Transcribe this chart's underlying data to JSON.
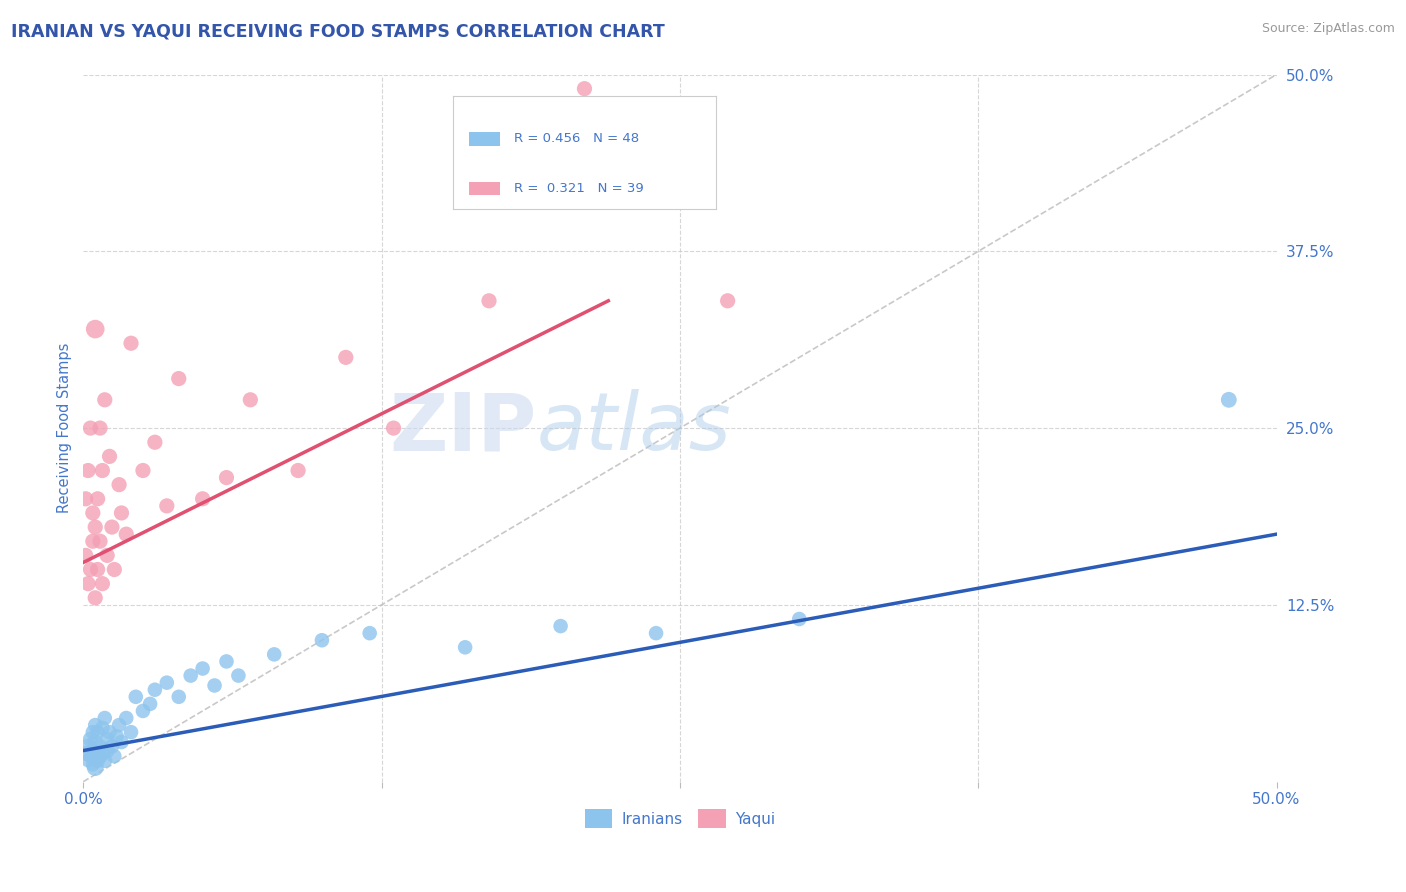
{
  "title": "IRANIAN VS YAQUI RECEIVING FOOD STAMPS CORRELATION CHART",
  "source": "Source: ZipAtlas.com",
  "ylabel": "Receiving Food Stamps",
  "xlim": [
    0,
    0.5
  ],
  "ylim": [
    0,
    0.5
  ],
  "color_iranian": "#8DC4ED",
  "color_yaqui": "#F4A0B5",
  "color_trend_iranian": "#2B5CB8",
  "color_trend_yaqui": "#E05070",
  "color_diagonal": "#BBBBBB",
  "color_grid": "#CCCCCC",
  "color_title": "#3355AA",
  "color_axis_labels": "#4477CC",
  "color_source": "#999999",
  "background_color": "#FFFFFF",
  "iranians_x": [
    0.001,
    0.002,
    0.002,
    0.003,
    0.003,
    0.004,
    0.004,
    0.004,
    0.005,
    0.005,
    0.005,
    0.006,
    0.006,
    0.007,
    0.007,
    0.008,
    0.008,
    0.009,
    0.009,
    0.01,
    0.01,
    0.011,
    0.012,
    0.013,
    0.014,
    0.015,
    0.016,
    0.018,
    0.02,
    0.022,
    0.025,
    0.028,
    0.03,
    0.035,
    0.04,
    0.045,
    0.05,
    0.055,
    0.06,
    0.065,
    0.08,
    0.1,
    0.12,
    0.16,
    0.2,
    0.24,
    0.3,
    0.48
  ],
  "iranians_y": [
    0.02,
    0.015,
    0.025,
    0.018,
    0.03,
    0.012,
    0.035,
    0.022,
    0.01,
    0.028,
    0.04,
    0.015,
    0.035,
    0.018,
    0.025,
    0.02,
    0.038,
    0.015,
    0.045,
    0.022,
    0.03,
    0.035,
    0.025,
    0.018,
    0.032,
    0.04,
    0.028,
    0.045,
    0.035,
    0.06,
    0.05,
    0.055,
    0.065,
    0.07,
    0.06,
    0.075,
    0.08,
    0.068,
    0.085,
    0.075,
    0.09,
    0.1,
    0.105,
    0.095,
    0.11,
    0.105,
    0.115,
    0.27
  ],
  "iranians_size": [
    120,
    100,
    120,
    110,
    120,
    100,
    110,
    120,
    150,
    120,
    110,
    120,
    110,
    120,
    110,
    120,
    110,
    120,
    110,
    120,
    110,
    110,
    110,
    110,
    110,
    110,
    110,
    110,
    110,
    110,
    110,
    110,
    110,
    110,
    110,
    110,
    110,
    110,
    110,
    110,
    110,
    110,
    110,
    110,
    110,
    110,
    110,
    130
  ],
  "yaqui_x": [
    0.001,
    0.001,
    0.002,
    0.002,
    0.003,
    0.003,
    0.004,
    0.004,
    0.005,
    0.005,
    0.005,
    0.006,
    0.006,
    0.007,
    0.007,
    0.008,
    0.008,
    0.009,
    0.01,
    0.011,
    0.012,
    0.013,
    0.015,
    0.016,
    0.018,
    0.02,
    0.025,
    0.03,
    0.035,
    0.04,
    0.05,
    0.06,
    0.07,
    0.09,
    0.11,
    0.13,
    0.17,
    0.21,
    0.27
  ],
  "yaqui_y": [
    0.16,
    0.2,
    0.14,
    0.22,
    0.15,
    0.25,
    0.17,
    0.19,
    0.13,
    0.18,
    0.32,
    0.15,
    0.2,
    0.17,
    0.25,
    0.14,
    0.22,
    0.27,
    0.16,
    0.23,
    0.18,
    0.15,
    0.21,
    0.19,
    0.175,
    0.31,
    0.22,
    0.24,
    0.195,
    0.285,
    0.2,
    0.215,
    0.27,
    0.22,
    0.3,
    0.25,
    0.34,
    0.49,
    0.34
  ],
  "yaqui_size": [
    120,
    120,
    120,
    120,
    120,
    120,
    120,
    120,
    120,
    120,
    180,
    120,
    120,
    120,
    120,
    120,
    120,
    120,
    120,
    120,
    120,
    120,
    120,
    120,
    120,
    120,
    120,
    120,
    120,
    120,
    120,
    120,
    120,
    120,
    120,
    120,
    120,
    120,
    120
  ],
  "iranian_trend_x0": 0.0,
  "iranian_trend_y0": 0.022,
  "iranian_trend_x1": 0.5,
  "iranian_trend_y1": 0.175,
  "yaqui_trend_x0": 0.0,
  "yaqui_trend_y0": 0.155,
  "yaqui_trend_x1": 0.22,
  "yaqui_trend_y1": 0.34
}
